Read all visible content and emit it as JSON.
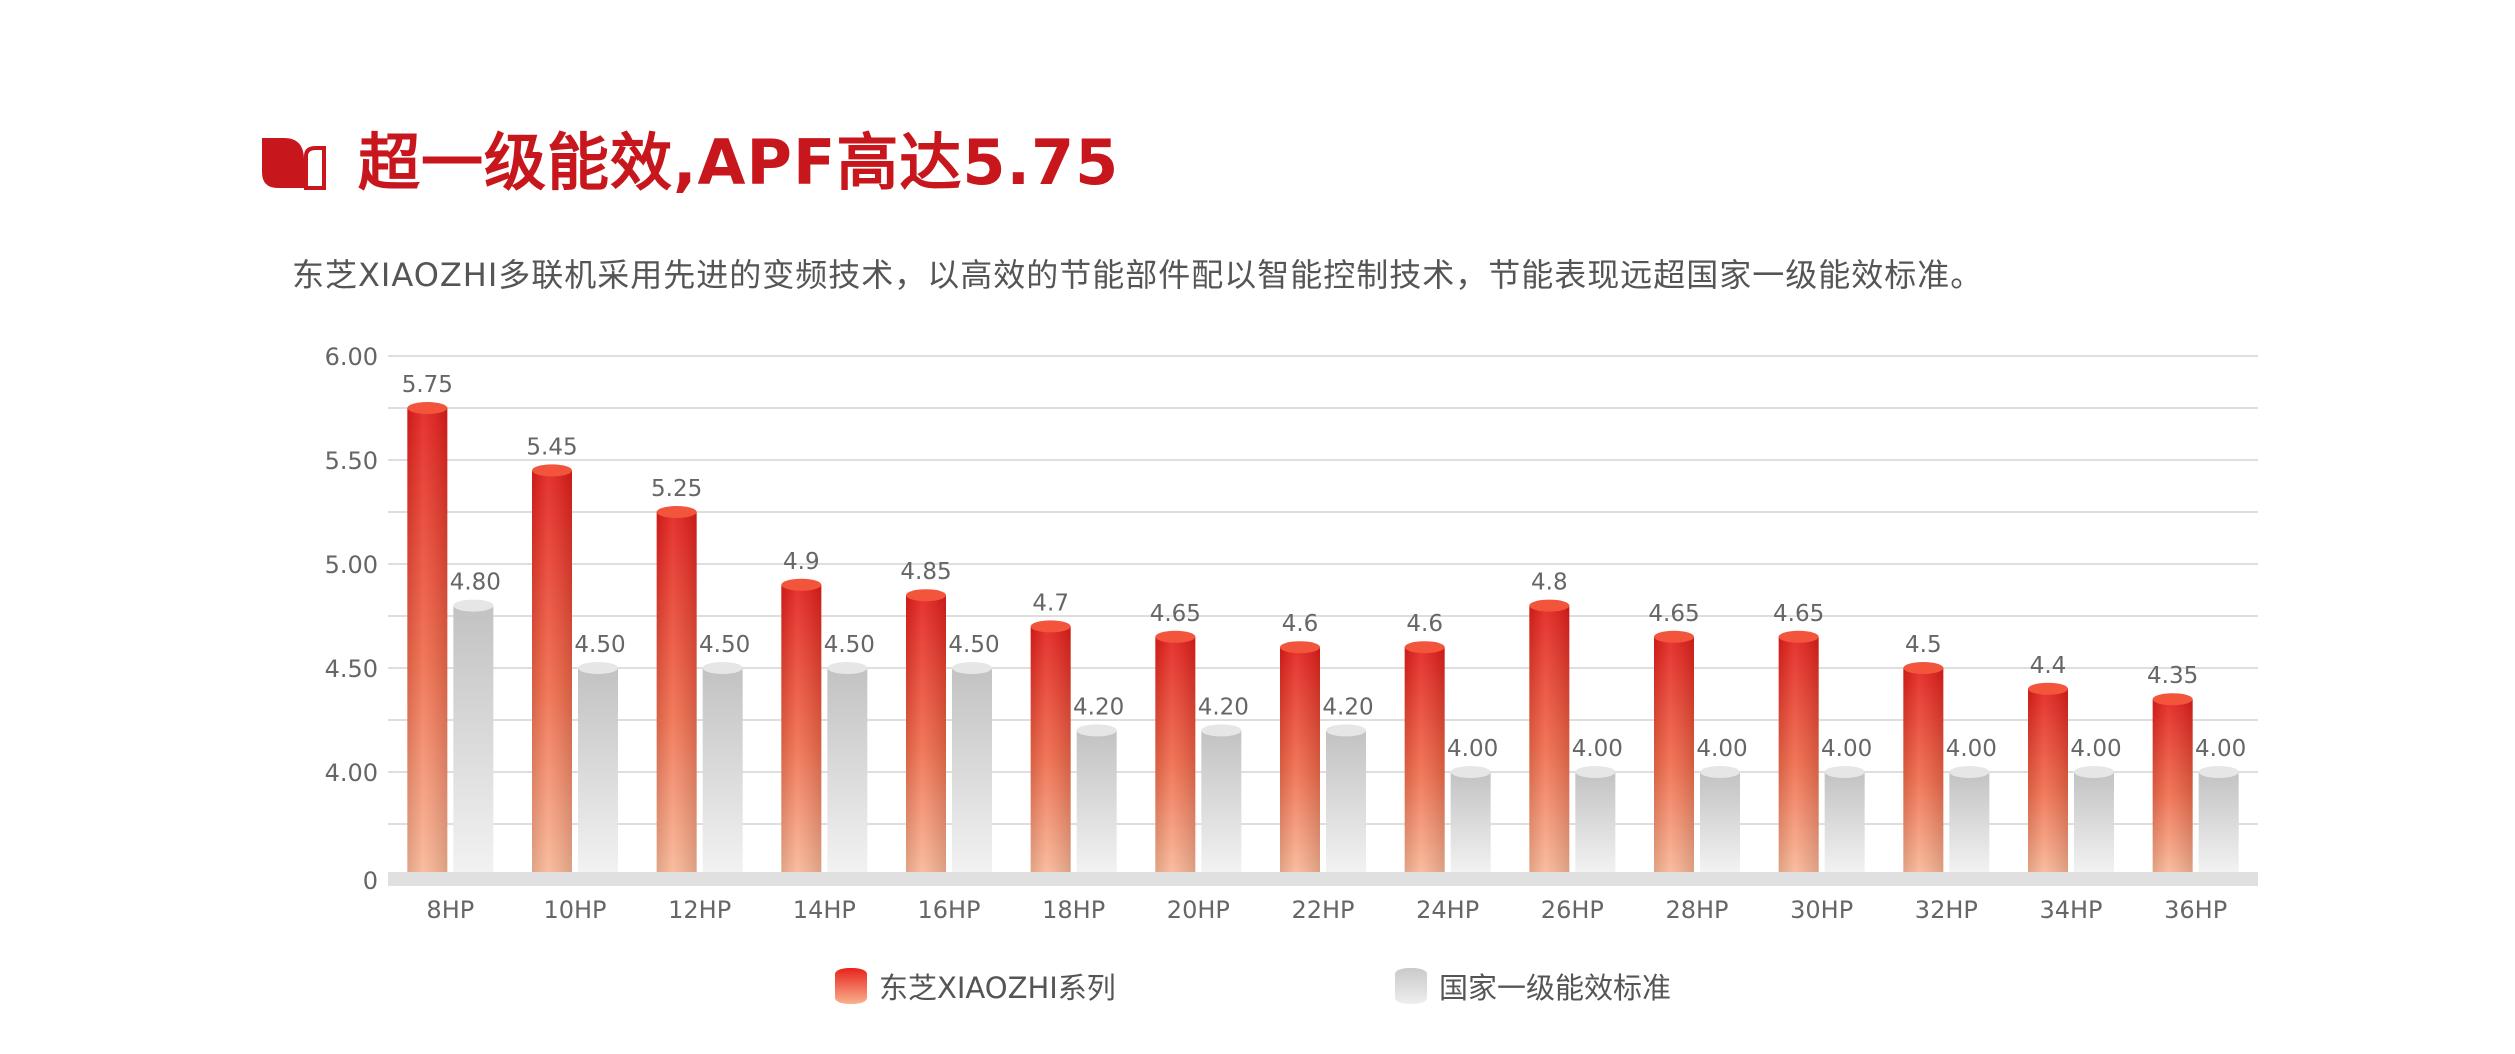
{
  "header": {
    "title": "超一级能效,APF高达5.75",
    "subtitle": "东芝XIAOZHI多联机采用先进的变频技术，以高效的节能部件配以智能控制技术，节能表现远超国家一级能效标准。"
  },
  "colors": {
    "brand_red": "#c8161d",
    "series1_top": "#e31d1a",
    "series1_bottom": "#f9b695",
    "series2_top": "#c4c4c4",
    "series2_bottom": "#f0f0f0"
  },
  "legend": {
    "series1": "东芝XIAOZHI系列",
    "series2": "国家一级能效标准"
  },
  "chart_data": {
    "type": "bar",
    "categories": [
      "8HP",
      "10HP",
      "12HP",
      "14HP",
      "16HP",
      "18HP",
      "20HP",
      "22HP",
      "24HP",
      "26HP",
      "28HP",
      "30HP",
      "32HP",
      "34HP",
      "36HP"
    ],
    "series": [
      {
        "name": "东芝XIAOZHI系列",
        "values": [
          5.75,
          5.45,
          5.25,
          4.9,
          4.85,
          4.7,
          4.65,
          4.6,
          4.6,
          4.8,
          4.65,
          4.65,
          4.5,
          4.4,
          4.35
        ],
        "labels": [
          "5.75",
          "5.45",
          "5.25",
          "4.9",
          "4.85",
          "4.7",
          "4.65",
          "4.6",
          "4.6",
          "4.8",
          "4.65",
          "4.65",
          "4.5",
          "4.4",
          "4.35"
        ]
      },
      {
        "name": "国家一级能效标准",
        "values": [
          4.8,
          4.5,
          4.5,
          4.5,
          4.5,
          4.2,
          4.2,
          4.2,
          4.0,
          4.0,
          4.0,
          4.0,
          4.0,
          4.0,
          4.0
        ],
        "labels": [
          "4.80",
          "4.50",
          "4.50",
          "4.50",
          "4.50",
          "4.20",
          "4.20",
          "4.20",
          "4.00",
          "4.00",
          "4.00",
          "4.00",
          "4.00",
          "4.00",
          "4.00"
        ]
      }
    ],
    "y_ticks": [
      "0",
      "4.00",
      "4.50",
      "5.00",
      "5.50",
      "6.00"
    ],
    "y_tick_values": [
      0,
      4.0,
      4.5,
      5.0,
      5.5,
      6.0
    ],
    "axis_break": "y axis jumps from 0 to 4.00",
    "ylim": [
      3.5,
      6.0
    ],
    "grid": true,
    "legend_position": "bottom-center"
  }
}
